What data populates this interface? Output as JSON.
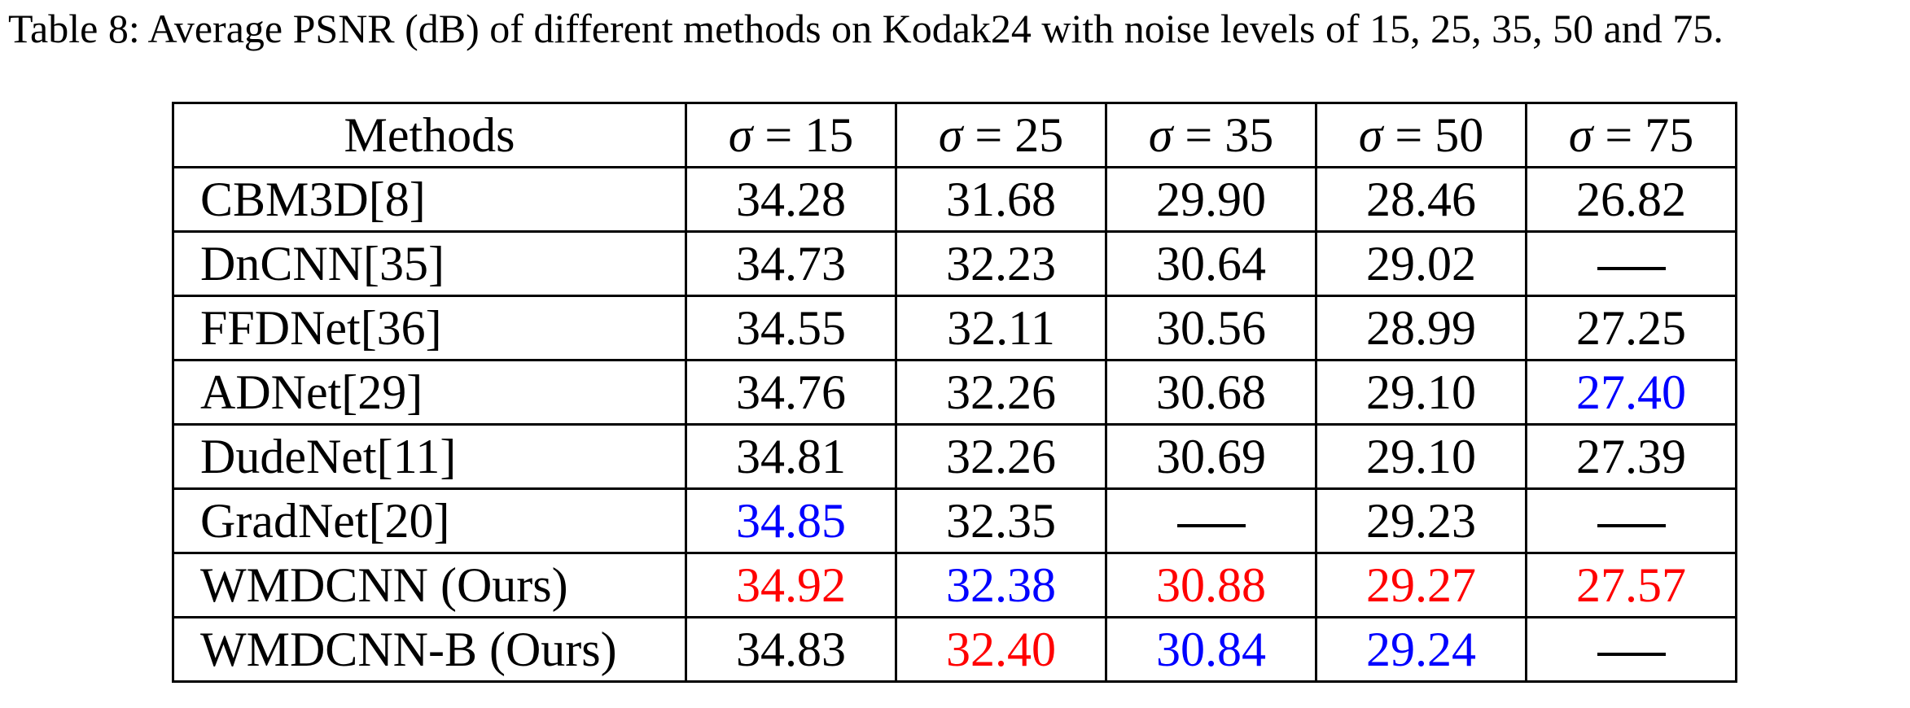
{
  "caption": "Table 8: Average PSNR (dB) of different methods on Kodak24 with noise levels of 15, 25, 35, 50 and 75.",
  "table": {
    "header": {
      "methods": "Methods",
      "sigma_symbol": "σ",
      "eq": " = ",
      "levels": [
        "15",
        "25",
        "35",
        "50",
        "75"
      ]
    },
    "rows": [
      {
        "method": "CBM3D[8]",
        "values": [
          "34.28",
          "31.68",
          "29.90",
          "28.46",
          "26.82"
        ],
        "colors": [
          "#000000",
          "#000000",
          "#000000",
          "#000000",
          "#000000"
        ]
      },
      {
        "method": "DnCNN[35]",
        "values": [
          "34.73",
          "32.23",
          "30.64",
          "29.02",
          "—"
        ],
        "colors": [
          "#000000",
          "#000000",
          "#000000",
          "#000000",
          "#000000"
        ]
      },
      {
        "method": "FFDNet[36]",
        "values": [
          "34.55",
          "32.11",
          "30.56",
          "28.99",
          "27.25"
        ],
        "colors": [
          "#000000",
          "#000000",
          "#000000",
          "#000000",
          "#000000"
        ]
      },
      {
        "method": "ADNet[29]",
        "values": [
          "34.76",
          "32.26",
          "30.68",
          "29.10",
          "27.40"
        ],
        "colors": [
          "#000000",
          "#000000",
          "#000000",
          "#000000",
          "#0000ff"
        ]
      },
      {
        "method": "DudeNet[11]",
        "values": [
          "34.81",
          "32.26",
          "30.69",
          "29.10",
          "27.39"
        ],
        "colors": [
          "#000000",
          "#000000",
          "#000000",
          "#000000",
          "#000000"
        ]
      },
      {
        "method": "GradNet[20]",
        "values": [
          "34.85",
          "32.35",
          "—",
          "29.23",
          "—"
        ],
        "colors": [
          "#0000ff",
          "#000000",
          "#000000",
          "#000000",
          "#000000"
        ]
      },
      {
        "method": "WMDCNN (Ours)",
        "values": [
          "34.92",
          "32.38",
          "30.88",
          "29.27",
          "27.57"
        ],
        "colors": [
          "#ff0000",
          "#0000ff",
          "#ff0000",
          "#ff0000",
          "#ff0000"
        ]
      },
      {
        "method": "WMDCNN-B (Ours)",
        "values": [
          "34.83",
          "32.40",
          "30.84",
          "29.24",
          "—"
        ],
        "colors": [
          "#000000",
          "#ff0000",
          "#0000ff",
          "#0000ff",
          "#000000"
        ]
      }
    ]
  }
}
